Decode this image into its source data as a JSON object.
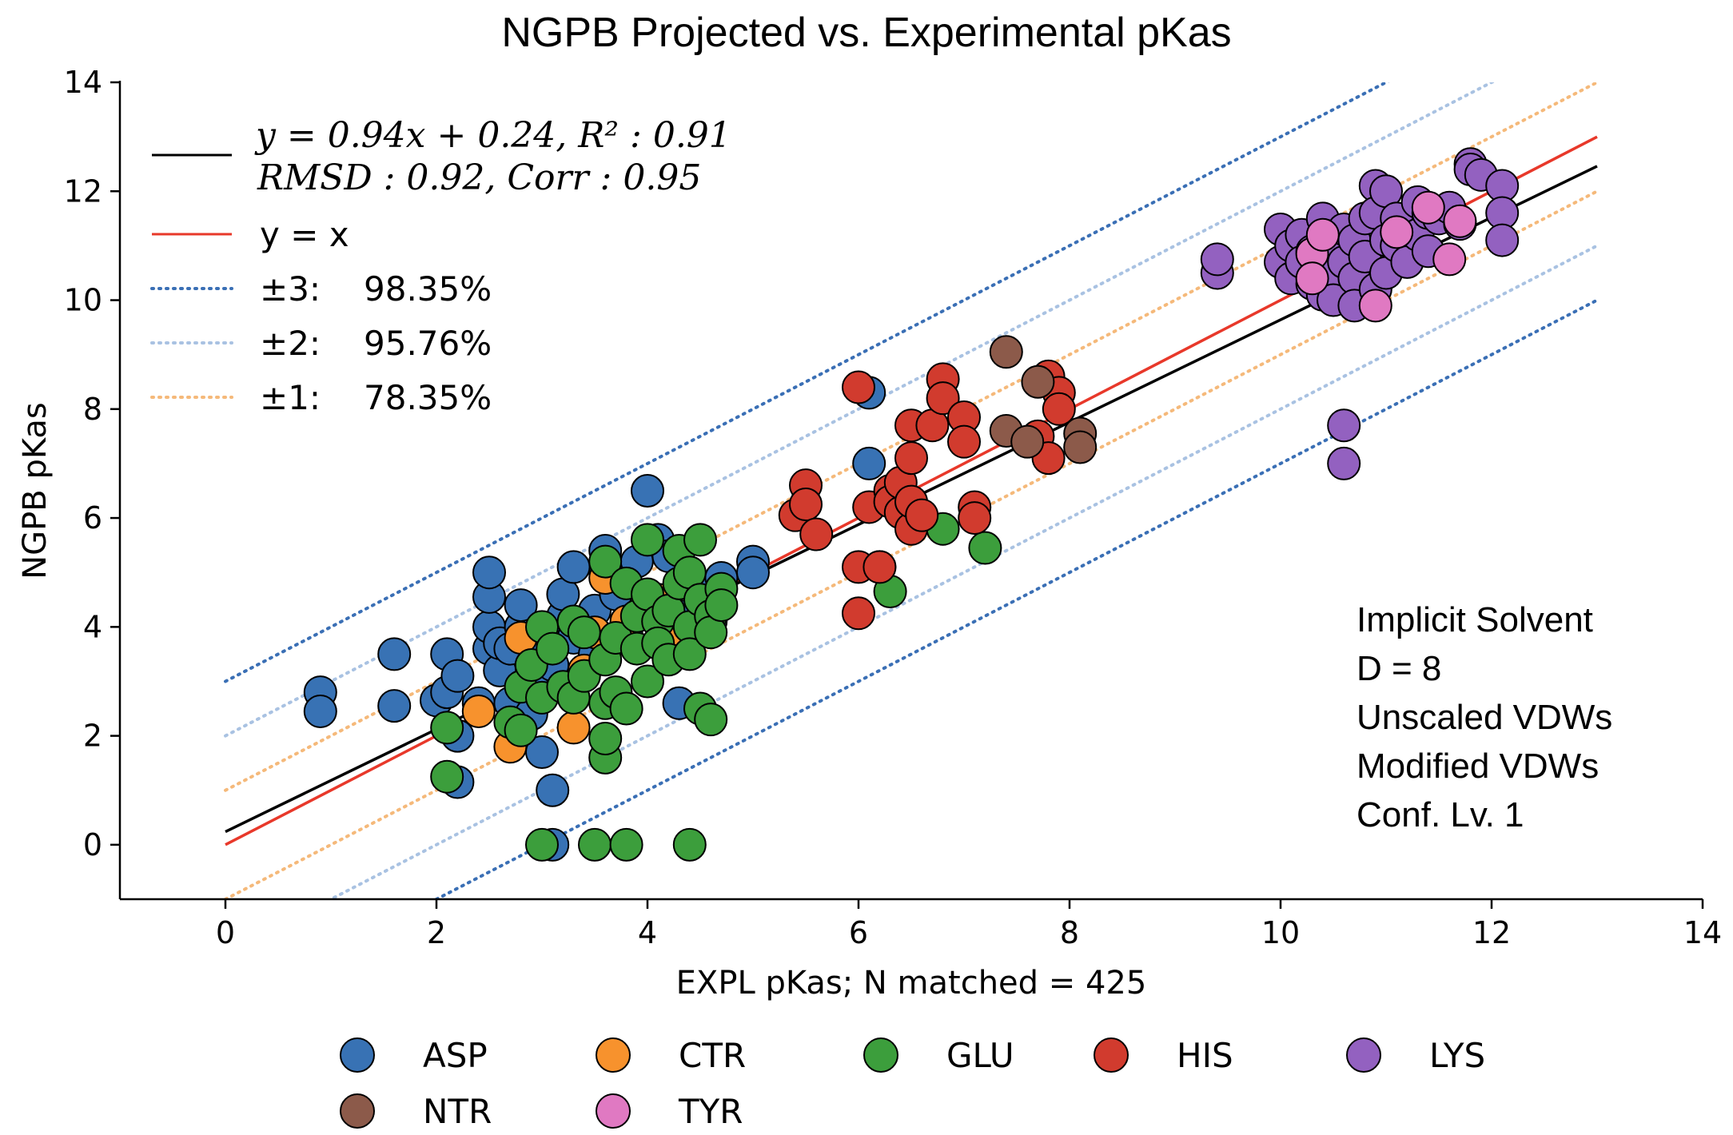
{
  "chart_data": {
    "type": "scatter",
    "title": "NGPB Projected vs. Experimental pKas",
    "xlabel": "EXPL pKas; N matched = 425",
    "ylabel": "NGPB pKas",
    "xlim": [
      -1,
      14
    ],
    "ylim": [
      -1,
      14
    ],
    "xticks": [
      0,
      2,
      4,
      6,
      8,
      10,
      12,
      14
    ],
    "yticks": [
      0,
      2,
      4,
      6,
      8,
      10,
      12,
      14
    ],
    "grid": false,
    "fit": {
      "slope": 0.94,
      "intercept": 0.24,
      "label_line1": "y = 0.94x + 0.24, R² : 0.91",
      "label_line2": "RMSD : 0.92, Corr : 0.95",
      "color": "#000000"
    },
    "identity": {
      "label": "y = x",
      "color": "#e8382a"
    },
    "bands": [
      {
        "offset": 3,
        "label": "±3:",
        "percent": "98.35%",
        "color": "#3a6fb5"
      },
      {
        "offset": 2,
        "label": "±2:",
        "percent": "95.76%",
        "color": "#a9c2e2"
      },
      {
        "offset": 1,
        "label": "±1:",
        "percent": "78.35%",
        "color": "#f5b97a"
      }
    ],
    "annotation": [
      "Implicit Solvent",
      "D = 8",
      "Unscaled VDWs",
      "Modified VDWs",
      "Conf. Lv. 1"
    ],
    "legend_position": "bottom",
    "series": [
      {
        "name": "ASP",
        "color": "#3872b4",
        "points": [
          [
            0.9,
            2.8
          ],
          [
            0.9,
            2.45
          ],
          [
            1.6,
            3.5
          ],
          [
            1.6,
            2.55
          ],
          [
            2.0,
            2.65
          ],
          [
            2.1,
            3.5
          ],
          [
            2.1,
            2.8
          ],
          [
            2.2,
            1.15
          ],
          [
            2.2,
            3.1
          ],
          [
            2.2,
            2.0
          ],
          [
            2.4,
            2.6
          ],
          [
            2.5,
            3.6
          ],
          [
            2.5,
            4.0
          ],
          [
            2.5,
            4.55
          ],
          [
            2.5,
            5.0
          ],
          [
            2.6,
            3.2
          ],
          [
            2.6,
            3.7
          ],
          [
            2.7,
            2.6
          ],
          [
            2.7,
            3.6
          ],
          [
            2.8,
            4.0
          ],
          [
            2.8,
            4.4
          ],
          [
            2.9,
            3.0
          ],
          [
            2.9,
            2.4
          ],
          [
            3.0,
            1.7
          ],
          [
            3.0,
            3.7
          ],
          [
            3.1,
            0.0
          ],
          [
            3.1,
            3.3
          ],
          [
            3.1,
            1.0
          ],
          [
            3.2,
            4.2
          ],
          [
            3.2,
            4.6
          ],
          [
            3.3,
            3.8
          ],
          [
            3.3,
            5.1
          ],
          [
            3.4,
            4.0
          ],
          [
            3.5,
            3.5
          ],
          [
            3.5,
            4.3
          ],
          [
            3.6,
            5.0
          ],
          [
            3.6,
            5.4
          ],
          [
            3.7,
            4.6
          ],
          [
            3.8,
            3.9
          ],
          [
            3.9,
            5.2
          ],
          [
            4.0,
            6.5
          ],
          [
            4.1,
            5.6
          ],
          [
            4.2,
            5.3
          ],
          [
            4.3,
            2.6
          ],
          [
            4.3,
            4.2
          ],
          [
            4.5,
            4.6
          ],
          [
            4.6,
            4.1
          ],
          [
            4.7,
            4.9
          ],
          [
            5.0,
            5.2
          ],
          [
            5.0,
            5.0
          ],
          [
            6.1,
            8.3
          ],
          [
            6.1,
            7.0
          ],
          [
            6.2,
            5.1
          ]
        ]
      },
      {
        "name": "CTR",
        "color": "#f7922d",
        "points": [
          [
            2.4,
            2.45
          ],
          [
            2.7,
            1.8
          ],
          [
            2.8,
            3.8
          ],
          [
            3.3,
            2.15
          ],
          [
            3.4,
            3.2
          ],
          [
            3.5,
            3.9
          ],
          [
            3.6,
            4.9
          ],
          [
            3.8,
            4.1
          ],
          [
            4.1,
            4.5
          ],
          [
            4.3,
            3.7
          ]
        ]
      },
      {
        "name": "GLU",
        "color": "#3c9e3c",
        "points": [
          [
            2.1,
            2.15
          ],
          [
            2.1,
            1.25
          ],
          [
            2.7,
            2.25
          ],
          [
            2.8,
            2.1
          ],
          [
            2.8,
            2.9
          ],
          [
            2.9,
            3.3
          ],
          [
            3.0,
            0.0
          ],
          [
            3.0,
            2.7
          ],
          [
            3.0,
            4.0
          ],
          [
            3.1,
            3.6
          ],
          [
            3.2,
            2.9
          ],
          [
            3.3,
            4.1
          ],
          [
            3.3,
            2.7
          ],
          [
            3.4,
            3.9
          ],
          [
            3.4,
            3.1
          ],
          [
            3.5,
            0.0
          ],
          [
            3.6,
            2.6
          ],
          [
            3.6,
            1.6
          ],
          [
            3.6,
            1.95
          ],
          [
            3.6,
            3.4
          ],
          [
            3.6,
            5.2
          ],
          [
            3.7,
            3.8
          ],
          [
            3.7,
            2.8
          ],
          [
            3.8,
            0.0
          ],
          [
            3.8,
            4.8
          ],
          [
            3.8,
            2.5
          ],
          [
            3.9,
            4.2
          ],
          [
            3.9,
            3.6
          ],
          [
            4.0,
            3.0
          ],
          [
            4.0,
            5.6
          ],
          [
            4.0,
            4.6
          ],
          [
            4.1,
            4.1
          ],
          [
            4.1,
            3.7
          ],
          [
            4.2,
            4.3
          ],
          [
            4.2,
            3.4
          ],
          [
            4.3,
            5.4
          ],
          [
            4.3,
            4.8
          ],
          [
            4.4,
            5.0
          ],
          [
            4.4,
            4.0
          ],
          [
            4.4,
            3.5
          ],
          [
            4.4,
            0.0
          ],
          [
            4.5,
            2.5
          ],
          [
            4.5,
            5.6
          ],
          [
            4.5,
            4.5
          ],
          [
            4.6,
            2.3
          ],
          [
            4.6,
            4.2
          ],
          [
            4.6,
            3.9
          ],
          [
            4.7,
            4.7
          ],
          [
            4.7,
            4.4
          ],
          [
            6.3,
            4.65
          ],
          [
            6.8,
            5.8
          ],
          [
            7.2,
            5.45
          ]
        ]
      },
      {
        "name": "HIS",
        "color": "#d13b2e",
        "points": [
          [
            5.4,
            6.05
          ],
          [
            5.5,
            6.6
          ],
          [
            5.5,
            6.25
          ],
          [
            5.6,
            5.7
          ],
          [
            6.0,
            8.4
          ],
          [
            6.0,
            5.1
          ],
          [
            6.0,
            4.25
          ],
          [
            6.1,
            6.2
          ],
          [
            6.2,
            5.1
          ],
          [
            6.3,
            6.5
          ],
          [
            6.3,
            6.3
          ],
          [
            6.4,
            6.65
          ],
          [
            6.4,
            6.1
          ],
          [
            6.5,
            7.7
          ],
          [
            6.5,
            7.1
          ],
          [
            6.5,
            5.8
          ],
          [
            6.5,
            6.3
          ],
          [
            6.6,
            6.05
          ],
          [
            6.7,
            7.7
          ],
          [
            6.8,
            8.55
          ],
          [
            6.8,
            8.2
          ],
          [
            7.0,
            7.85
          ],
          [
            7.0,
            7.4
          ],
          [
            7.1,
            6.2
          ],
          [
            7.1,
            6.0
          ],
          [
            7.7,
            7.5
          ],
          [
            7.8,
            7.1
          ],
          [
            7.8,
            8.6
          ],
          [
            7.9,
            8.3
          ],
          [
            7.9,
            8.0
          ]
        ]
      },
      {
        "name": "LYS",
        "color": "#9361c0",
        "points": [
          [
            9.4,
            10.5
          ],
          [
            9.4,
            10.75
          ],
          [
            10.0,
            11.3
          ],
          [
            10.0,
            10.7
          ],
          [
            10.1,
            11.0
          ],
          [
            10.1,
            10.4
          ],
          [
            10.2,
            11.2
          ],
          [
            10.2,
            10.7
          ],
          [
            10.3,
            10.9
          ],
          [
            10.3,
            10.3
          ],
          [
            10.4,
            11.5
          ],
          [
            10.4,
            10.1
          ],
          [
            10.5,
            11.0
          ],
          [
            10.5,
            10.5
          ],
          [
            10.5,
            10.0
          ],
          [
            10.6,
            11.3
          ],
          [
            10.6,
            10.7
          ],
          [
            10.6,
            7.7
          ],
          [
            10.6,
            7.0
          ],
          [
            10.7,
            11.1
          ],
          [
            10.7,
            10.4
          ],
          [
            10.7,
            9.9
          ],
          [
            10.8,
            11.5
          ],
          [
            10.8,
            10.8
          ],
          [
            10.9,
            12.1
          ],
          [
            10.9,
            11.6
          ],
          [
            10.9,
            10.2
          ],
          [
            11.0,
            12.0
          ],
          [
            11.0,
            11.1
          ],
          [
            11.0,
            10.5
          ],
          [
            11.1,
            11.5
          ],
          [
            11.1,
            11.0
          ],
          [
            11.2,
            10.7
          ],
          [
            11.3,
            11.8
          ],
          [
            11.3,
            11.2
          ],
          [
            11.4,
            11.6
          ],
          [
            11.4,
            10.9
          ],
          [
            11.5,
            11.5
          ],
          [
            11.6,
            11.7
          ],
          [
            11.7,
            11.4
          ],
          [
            11.8,
            12.5
          ],
          [
            11.8,
            12.4
          ],
          [
            11.9,
            12.3
          ],
          [
            12.1,
            12.1
          ],
          [
            12.1,
            11.6
          ],
          [
            12.1,
            11.1
          ]
        ]
      },
      {
        "name": "NTR",
        "color": "#8c5a4a",
        "points": [
          [
            7.4,
            9.05
          ],
          [
            7.4,
            7.6
          ],
          [
            7.6,
            7.4
          ],
          [
            7.7,
            8.5
          ],
          [
            8.1,
            7.55
          ],
          [
            8.1,
            7.3
          ]
        ]
      },
      {
        "name": "TYR",
        "color": "#e079c2",
        "points": [
          [
            10.3,
            10.85
          ],
          [
            10.3,
            10.4
          ],
          [
            10.4,
            11.2
          ],
          [
            10.9,
            9.9
          ],
          [
            11.1,
            11.25
          ],
          [
            11.4,
            11.7
          ],
          [
            11.6,
            10.75
          ],
          [
            11.7,
            11.45
          ]
        ]
      }
    ]
  }
}
